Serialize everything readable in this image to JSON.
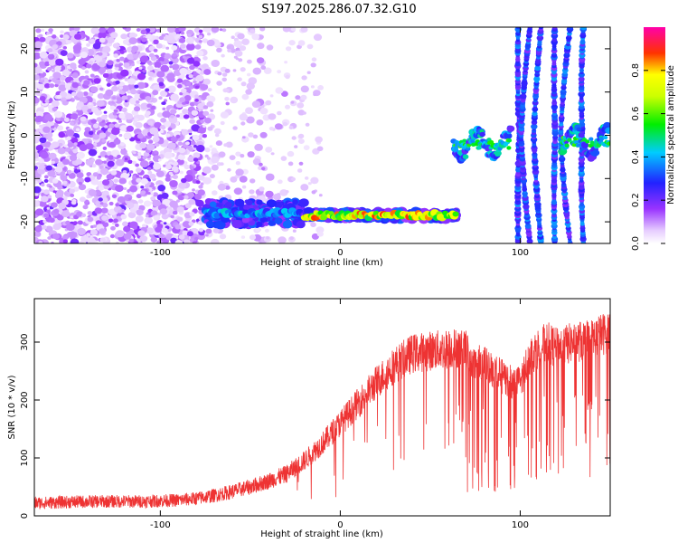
{
  "title": "S197.2025.286.07.32.G10",
  "chart_data": [
    {
      "type": "heatmap",
      "xlabel": "Height of straight line (km)",
      "ylabel": "Frequency (Hz)",
      "xlim": [
        -170,
        150
      ],
      "ylim": [
        -25,
        25
      ],
      "xticks": [
        -100,
        0,
        100
      ],
      "yticks": [
        -20,
        -10,
        0,
        10,
        20
      ],
      "colorbar": {
        "label": "Normalized spectral amplitude",
        "range": [
          0.0,
          1.0
        ],
        "ticks": [
          "0.0",
          "0.2",
          "0.4",
          "0.6",
          "0.8"
        ]
      },
      "features": [
        {
          "kind": "noise",
          "x": [
            -170,
            -75
          ],
          "y": [
            -25,
            25
          ],
          "level": 0.2
        },
        {
          "kind": "noise-sparse",
          "x": [
            -75,
            -10
          ],
          "y": [
            -25,
            25
          ],
          "level": 0.1
        },
        {
          "kind": "band",
          "x": [
            -75,
            -20
          ],
          "y": [
            -22,
            -14
          ],
          "center_freq": -18,
          "level": 0.45
        },
        {
          "kind": "band",
          "x": [
            -20,
            65
          ],
          "y": [
            -20,
            -17
          ],
          "center_freq": -18.5,
          "level": 0.9
        },
        {
          "kind": "tone",
          "x": [
            63,
            95
          ],
          "center_freq": -2,
          "level": 0.6
        },
        {
          "kind": "arc",
          "x": [
            97,
            140
          ],
          "level": 0.35
        },
        {
          "kind": "tone",
          "x": [
            123,
            150
          ],
          "center_freq": -1.5,
          "level": 0.6
        }
      ]
    },
    {
      "type": "line",
      "xlabel": "Height of straight line (km)",
      "ylabel": "SNR (10 * v/v)",
      "xlim": [
        -170,
        150
      ],
      "ylim": [
        0,
        375
      ],
      "xticks": [
        -100,
        0,
        100
      ],
      "yticks": [
        0,
        100,
        200,
        300
      ],
      "color": "#ee3333",
      "series_x": [
        -170,
        -150,
        -130,
        -110,
        -90,
        -80,
        -70,
        -60,
        -50,
        -40,
        -30,
        -20,
        -10,
        0,
        10,
        20,
        30,
        40,
        50,
        60,
        65,
        70,
        75,
        80,
        85,
        90,
        95,
        100,
        105,
        110,
        115,
        120,
        130,
        140,
        150
      ],
      "series_y": [
        22,
        24,
        25,
        25,
        27,
        30,
        35,
        42,
        50,
        60,
        72,
        95,
        125,
        160,
        195,
        230,
        260,
        280,
        285,
        288,
        290,
        285,
        260,
        270,
        250,
        240,
        230,
        230,
        275,
        290,
        300,
        290,
        300,
        305,
        320
      ]
    }
  ]
}
